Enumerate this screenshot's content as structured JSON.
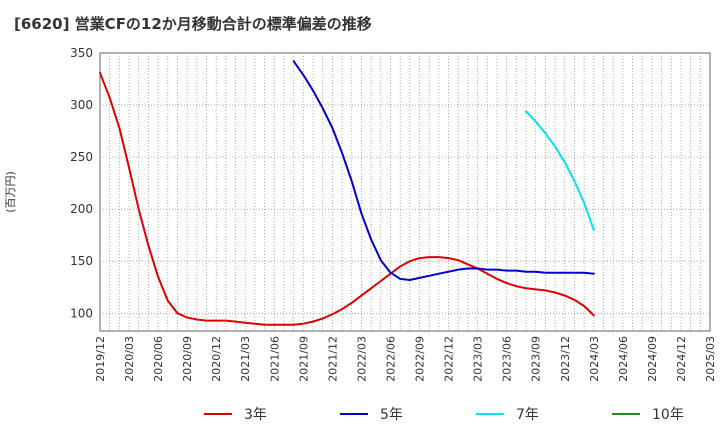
{
  "chart_data": {
    "type": "line",
    "title": "[6620]  営業CFの12か月移動合計の標準偏差の推移",
    "ylabel": "(百万円)",
    "xlabel": "",
    "ylim": [
      83,
      350
    ],
    "yticks": [
      100,
      150,
      200,
      250,
      300,
      350
    ],
    "x_ticks": [
      "2019/12",
      "2020/03",
      "2020/06",
      "2020/09",
      "2020/12",
      "2021/03",
      "2021/06",
      "2021/09",
      "2021/12",
      "2022/03",
      "2022/06",
      "2022/09",
      "2022/12",
      "2023/03",
      "2023/06",
      "2023/09",
      "2023/12",
      "2024/03",
      "2024/06",
      "2024/09",
      "2024/12",
      "2025/03"
    ],
    "grid": true,
    "legend_position": "bottom",
    "series": [
      {
        "name": "3年",
        "color": "#dd0000",
        "x": [
          "2019/12",
          "2020/01",
          "2020/02",
          "2020/03",
          "2020/04",
          "2020/05",
          "2020/06",
          "2020/07",
          "2020/08",
          "2020/09",
          "2020/10",
          "2020/11",
          "2020/12",
          "2021/01",
          "2021/02",
          "2021/03",
          "2021/04",
          "2021/05",
          "2021/06",
          "2021/07",
          "2021/08",
          "2021/09",
          "2021/10",
          "2021/11",
          "2021/12",
          "2022/01",
          "2022/02",
          "2022/03",
          "2022/04",
          "2022/05",
          "2022/06",
          "2022/07",
          "2022/08",
          "2022/09",
          "2022/10",
          "2022/11",
          "2022/12",
          "2023/01",
          "2023/02",
          "2023/03",
          "2023/04",
          "2023/05",
          "2023/06",
          "2023/07",
          "2023/08",
          "2023/09",
          "2023/10",
          "2023/11",
          "2023/12",
          "2024/01",
          "2024/02",
          "2024/03"
        ],
        "values": [
          331,
          307,
          278,
          240,
          200,
          165,
          135,
          112,
          100,
          96,
          94,
          93,
          93,
          93,
          92,
          91,
          90,
          89,
          89,
          89,
          89,
          90,
          92,
          95,
          99,
          104,
          110,
          117,
          124,
          131,
          138,
          145,
          150,
          153,
          154,
          154,
          153,
          151,
          147,
          143,
          138,
          133,
          129,
          126,
          124,
          123,
          122,
          120,
          117,
          113,
          107,
          98
        ]
      },
      {
        "name": "5年",
        "color": "#0000cc",
        "x": [
          "2021/08",
          "2021/09",
          "2021/10",
          "2021/11",
          "2021/12",
          "2022/01",
          "2022/02",
          "2022/03",
          "2022/04",
          "2022/05",
          "2022/06",
          "2022/07",
          "2022/08",
          "2022/09",
          "2022/10",
          "2022/11",
          "2022/12",
          "2023/01",
          "2023/02",
          "2023/03",
          "2023/04",
          "2023/05",
          "2023/06",
          "2023/07",
          "2023/08",
          "2023/09",
          "2023/10",
          "2023/11",
          "2023/12",
          "2024/01",
          "2024/02",
          "2024/03"
        ],
        "values": [
          342,
          329,
          314,
          297,
          278,
          254,
          227,
          196,
          171,
          151,
          139,
          133,
          132,
          134,
          136,
          138,
          140,
          142,
          143,
          143,
          142,
          142,
          141,
          141,
          140,
          140,
          139,
          139,
          139,
          139,
          139,
          138
        ]
      },
      {
        "name": "7年",
        "color": "#00e5ee",
        "x": [
          "2023/08",
          "2023/09",
          "2023/10",
          "2023/11",
          "2023/12",
          "2024/01",
          "2024/02",
          "2024/03"
        ],
        "values": [
          294,
          284,
          273,
          260,
          245,
          227,
          206,
          180
        ]
      },
      {
        "name": "10年",
        "color": "#228b22",
        "x": [],
        "values": []
      }
    ]
  }
}
